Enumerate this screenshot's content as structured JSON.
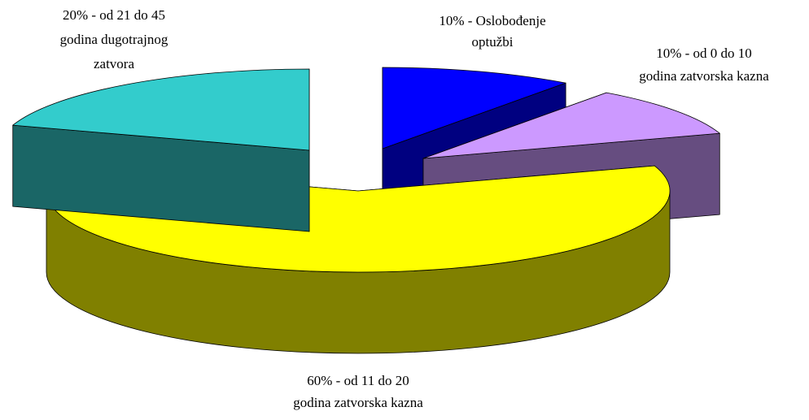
{
  "chart_data": {
    "type": "pie3d",
    "values": [
      10,
      10,
      60,
      20
    ],
    "value_labels": [
      [
        "10% - Oslobođenje",
        "optužbi"
      ],
      [
        "10% - od 0 do 10",
        "godina zatvorska kazna"
      ],
      [
        "60% - od 11 do 20",
        "godina zatvorska kazna"
      ],
      [
        "20% - od 21 do 45",
        "godina dugotrajnog",
        "zatvora"
      ]
    ],
    "colors": [
      "#0000ff",
      "#cc99ff",
      "#ffff00",
      "#33cccc"
    ]
  }
}
